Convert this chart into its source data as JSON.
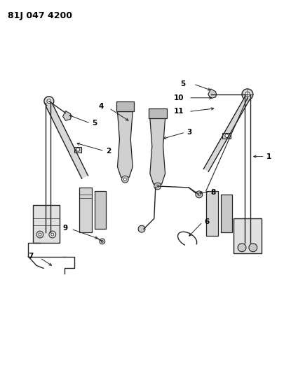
{
  "title": "81J 047 4200",
  "bg": "#ffffff",
  "lc": "#222222",
  "fc_light": "#cccccc",
  "fc_mid": "#aaaaaa",
  "figsize": [
    4.06,
    5.33
  ],
  "dpi": 100,
  "label_fs": 7.5
}
